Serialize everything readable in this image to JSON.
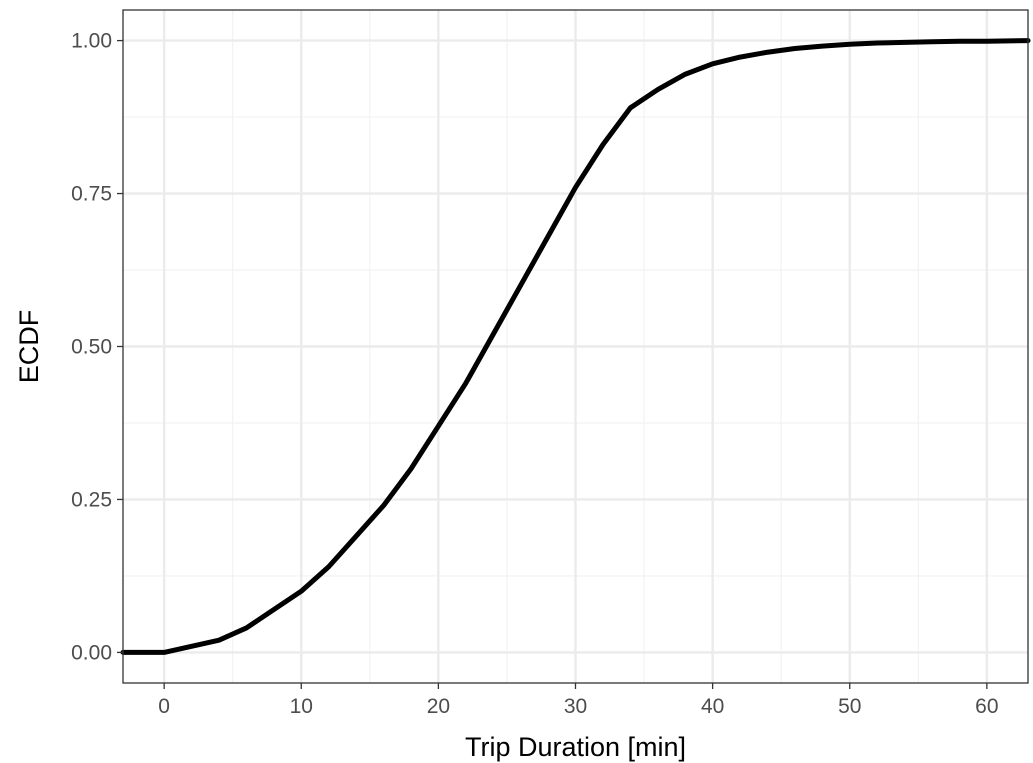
{
  "chart_data": {
    "type": "line",
    "title": "",
    "xlabel": "Trip Duration [min]",
    "ylabel": "ECDF",
    "xlim": [
      -3,
      63
    ],
    "ylim": [
      -0.05,
      1.05
    ],
    "xticks": [
      0,
      10,
      20,
      30,
      40,
      50,
      60
    ],
    "xtick_labels": [
      "0",
      "10",
      "20",
      "30",
      "40",
      "50",
      "60"
    ],
    "xminor": [
      5,
      15,
      25,
      35,
      45,
      55
    ],
    "yticks": [
      0,
      0.25,
      0.5,
      0.75,
      1
    ],
    "ytick_labels": [
      "0.00",
      "0.25",
      "0.50",
      "0.75",
      "1.00"
    ],
    "yminor": [
      0.125,
      0.375,
      0.625,
      0.875
    ],
    "grid": true,
    "legend": "none",
    "series": [
      {
        "color": "#000000",
        "x": [
          -3,
          0,
          2,
          4,
          6,
          8,
          10,
          12,
          14,
          16,
          18,
          20,
          22,
          24,
          26,
          28,
          30,
          32,
          34,
          36,
          38,
          40,
          42,
          44,
          46,
          48,
          50,
          52,
          54,
          56,
          58,
          60,
          63
        ],
        "y": [
          0,
          0,
          0.01,
          0.02,
          0.04,
          0.07,
          0.1,
          0.14,
          0.19,
          0.24,
          0.3,
          0.37,
          0.44,
          0.52,
          0.6,
          0.68,
          0.76,
          0.83,
          0.89,
          0.92,
          0.945,
          0.962,
          0.973,
          0.981,
          0.987,
          0.991,
          0.994,
          0.996,
          0.997,
          0.998,
          0.999,
          0.999,
          1.0
        ]
      }
    ]
  }
}
